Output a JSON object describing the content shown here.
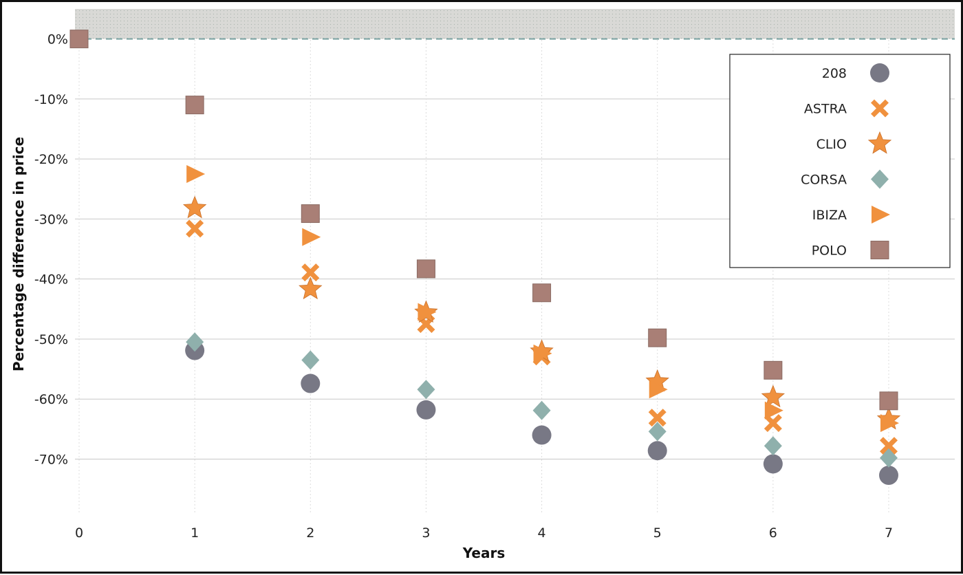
{
  "chart_data": {
    "type": "scatter",
    "xlabel": "Years",
    "ylabel": "Percentage difference in price",
    "xlim": [
      0,
      7
    ],
    "ylim": [
      -79,
      5
    ],
    "x_ticks": [
      0,
      1,
      2,
      3,
      4,
      5,
      6,
      7
    ],
    "y_ticks": [
      "0%",
      "-10%",
      "-20%",
      "-30%",
      "-40%",
      "-50%",
      "-60%",
      "-70%"
    ],
    "y_tick_values": [
      0,
      -10,
      -20,
      -30,
      -40,
      -50,
      -60,
      -70
    ],
    "grid": true,
    "shaded_band": {
      "from": 0,
      "to": 5,
      "color": "#d9d9d6"
    },
    "reference_line": {
      "y": 0,
      "color": "#7aa3a2",
      "style": "dashed"
    },
    "legend_position": "top-right",
    "series": [
      {
        "name": "208",
        "marker": "circle",
        "color": "#787885",
        "x": [
          1,
          2,
          3,
          4,
          5,
          6,
          7
        ],
        "y": [
          -51.9,
          -57.4,
          -61.8,
          -66.0,
          -68.6,
          -70.8,
          -72.7
        ]
      },
      {
        "name": "ASTRA",
        "marker": "x",
        "color": "#f0913e",
        "x": [
          1,
          2,
          3,
          4,
          5,
          6,
          7
        ],
        "y": [
          -31.6,
          -38.9,
          -47.5,
          -52.9,
          -63.1,
          -64.0,
          -67.8
        ]
      },
      {
        "name": "CLIO",
        "marker": "star",
        "color": "#f0913e",
        "x": [
          1,
          2,
          3,
          4,
          5,
          6,
          7
        ],
        "y": [
          -28.2,
          -41.7,
          -45.6,
          -52.1,
          -57.1,
          -59.7,
          -63.4
        ]
      },
      {
        "name": "CORSA",
        "marker": "diamond",
        "color": "#8fb0ac",
        "x": [
          1,
          2,
          3,
          4,
          5,
          6,
          7
        ],
        "y": [
          -50.5,
          -53.5,
          -58.4,
          -61.9,
          -65.4,
          -67.8,
          -69.8
        ]
      },
      {
        "name": "IBIZA",
        "marker": "triangle",
        "color": "#f0913e",
        "x": [
          1,
          2,
          3,
          4,
          5,
          6,
          7
        ],
        "y": [
          -22.5,
          -33.0,
          -45.5,
          -52.4,
          -58.4,
          -61.9,
          -64.0
        ]
      },
      {
        "name": "POLO",
        "marker": "square",
        "color": "#a97f76",
        "x": [
          0,
          1,
          2,
          3,
          4,
          5,
          6,
          7
        ],
        "y": [
          0,
          -11.0,
          -29.1,
          -38.3,
          -42.3,
          -49.8,
          -55.2,
          -60.3
        ]
      }
    ]
  }
}
